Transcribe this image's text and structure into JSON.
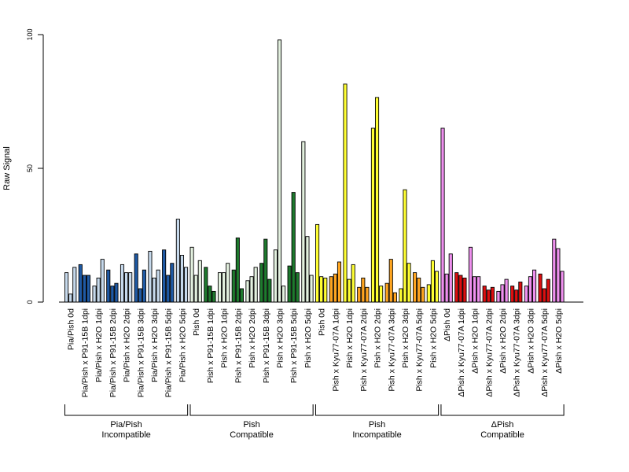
{
  "chart_data": {
    "type": "bar",
    "ylabel": "Raw Signal",
    "ylim": [
      0,
      100
    ],
    "yticks": [
      0,
      50,
      100
    ],
    "grid": false,
    "legend": "none",
    "categories": [
      "Pia/Pish 0d",
      "Pia/Pish x P91-15B 1dpi",
      "Pia/Pish x H2O 1dpi",
      "Pia/Pish x P91-15B 2dpi",
      "Pia/Pish x H2O 2dpi",
      "Pia/Pish x P91-15B 3dpi",
      "Pia/Pish x H2O 3dpi",
      "Pia/Pish x P91-15B 5dpi",
      "Pia/Pish x H2O 5dpi",
      "Pish 0d",
      "Pish x P91-15B 1dpi",
      "Pish x H2O 1dpi",
      "Pish x P91-15B 2dpi",
      "Pish x H2O 2dpi",
      "Pish x P91-15B 3dpi",
      "Pish x H2O 3dpi",
      "Pish x P91-15B 5dpi",
      "Pish x H2O 5dpi",
      "Pish 0d",
      "Pish x Kyu77-07A 1dpi",
      "Pish x H2O 1dpi",
      "Pish x Kyu77-07A 2dpi",
      "Pish x H2O 2dpi",
      "Pish x Kyu77-07A 3dpi",
      "Pish x H2O 3dpi",
      "Pish x Kyu77-07A 5dpi",
      "Pish x H2O 5dpi",
      "ΔPish 0d",
      "ΔPish x Kyu77-07A 1dpi",
      "ΔPish x H2O 1dpi",
      "ΔPish x Kyu77-07A 2dpi",
      "ΔPish x H2O 2dpi",
      "ΔPish x Kyu77-07A 3dpi",
      "ΔPish x H2O 3dpi",
      "ΔPish x Kyu77-07A 5dpi",
      "ΔPish x H2O 5dpi"
    ],
    "values": [
      [
        11,
        3,
        13
      ],
      [
        14,
        10,
        10
      ],
      [
        6,
        9,
        16
      ],
      [
        12,
        6,
        7
      ],
      [
        14,
        11,
        11
      ],
      [
        18,
        5,
        12
      ],
      [
        19,
        9,
        12
      ],
      [
        19.5,
        10,
        14.5
      ],
      [
        31,
        17.5,
        13
      ],
      [
        20.5,
        10,
        15.5
      ],
      [
        13,
        6,
        4
      ],
      [
        11,
        11,
        14.5
      ],
      [
        12,
        24,
        5
      ],
      [
        8,
        9.5,
        13
      ],
      [
        14.5,
        23.5,
        8.5
      ],
      [
        19.5,
        98,
        6
      ],
      [
        13.5,
        41,
        11
      ],
      [
        60,
        24.5,
        10
      ],
      [
        29,
        9.5,
        9
      ],
      [
        9.5,
        10.5,
        15
      ],
      [
        81.5,
        8.5,
        14
      ],
      [
        5.5,
        9,
        5.5
      ],
      [
        65,
        76.5,
        6
      ],
      [
        7,
        16,
        3.5
      ],
      [
        5,
        42,
        14.5
      ],
      [
        11,
        9,
        5.5
      ],
      [
        6.5,
        15.5,
        11.5
      ],
      [
        65,
        10.5,
        18
      ],
      [
        11,
        10,
        9
      ],
      [
        20.5,
        9.5,
        9.5
      ],
      [
        6,
        4.5,
        5.5
      ],
      [
        4,
        6.5,
        8.5
      ],
      [
        6,
        4.5,
        7.5
      ],
      [
        6,
        9.5,
        12
      ],
      [
        10.5,
        5,
        8.5
      ],
      [
        23.5,
        20,
        11.5
      ]
    ],
    "bar_colors": [
      "#c6d9ec",
      "#1f5aa5",
      "#c6d9ec",
      "#1f5aa5",
      "#c6d9ec",
      "#1f5aa5",
      "#c6d9ec",
      "#1f5aa5",
      "#c6d9ec",
      "#e3f1df",
      "#1e7a2e",
      "#e3f1df",
      "#1e7a2e",
      "#e3f1df",
      "#1e7a2e",
      "#e3f1df",
      "#1e7a2e",
      "#e3f1df",
      "#ffff33",
      "#ffa520",
      "#ffff33",
      "#ffa520",
      "#ffff33",
      "#ffa520",
      "#ffff33",
      "#ffa520",
      "#ffff33",
      "#ee90ee",
      "#dd0f10",
      "#ee90ee",
      "#dd0f10",
      "#ee90ee",
      "#dd0f10",
      "#ee90ee",
      "#dd0f10",
      "#ee90ee"
    ],
    "groups": [
      {
        "line1": "Pia/Pish",
        "line2": "Incompatible",
        "start": 0,
        "end": 8
      },
      {
        "line1": "Pish",
        "line2": "Compatible",
        "start": 9,
        "end": 17
      },
      {
        "line1": "Pish",
        "line2": "Incompatible",
        "start": 18,
        "end": 26
      },
      {
        "line1": "ΔPish",
        "line2": "Compatible",
        "start": 27,
        "end": 35
      }
    ]
  }
}
